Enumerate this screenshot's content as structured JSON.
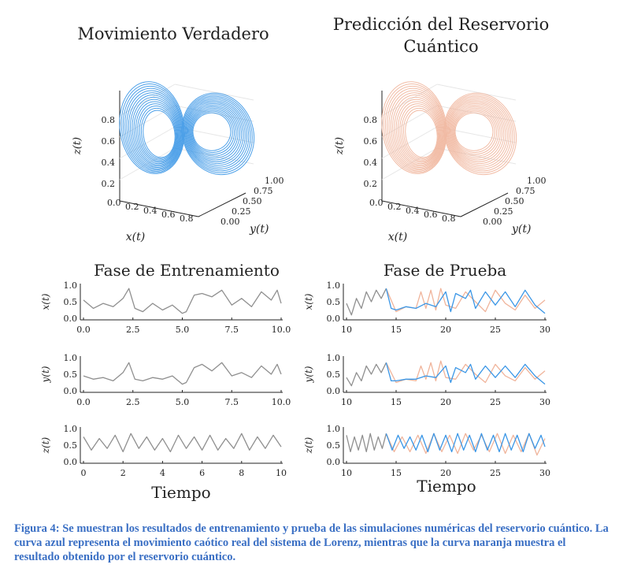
{
  "figure": {
    "colors": {
      "truth": "#3a96e6",
      "prediction": "#f0b49b",
      "training": "#8f8f8f",
      "axis": "#222222",
      "grid": "#e6e6e6"
    },
    "attractor_panels": [
      {
        "title_lines": [
          "Movimiento Verdadero"
        ],
        "color": "truth",
        "zlabel": "z(t)",
        "xlabel": "x(t)",
        "ylabel": "y(t)",
        "z_ticks": [
          "0.2",
          "0.4",
          "0.6",
          "0.8"
        ],
        "x_ticks": [
          "0.0",
          "0.2",
          "0.4",
          "0.6",
          "0.8"
        ],
        "y_ticks": [
          "0.00",
          "0.25",
          "0.50",
          "0.75",
          "1.00"
        ]
      },
      {
        "title_lines": [
          "Predicción del Reservorio",
          "Cuántico"
        ],
        "color": "prediction",
        "zlabel": "z(t)",
        "xlabel": "x(t)",
        "ylabel": "y(t)",
        "z_ticks": [
          "0.2",
          "0.4",
          "0.6",
          "0.8"
        ],
        "x_ticks": [
          "0.0",
          "0.2",
          "0.4",
          "0.6",
          "0.8"
        ],
        "y_ticks": [
          "0.00",
          "0.25",
          "0.50",
          "0.75",
          "1.00"
        ]
      }
    ],
    "phase_titles": [
      "Fase de Entrenamiento",
      "Fase de Prueba"
    ],
    "xlabel_bottom": [
      "Tiempo",
      "Tiempo"
    ],
    "row_labels": [
      "x(t)",
      "y(t)",
      "z(t)"
    ]
  },
  "chart_data": [
    {
      "type": "line",
      "panel": "training-x",
      "ylabel": "x(t)",
      "xlim": [
        0,
        10
      ],
      "ylim": [
        0,
        1
      ],
      "x_ticks": [
        "0.0",
        "2.5",
        "5.0",
        "7.5",
        "10.0"
      ],
      "y_ticks": [
        "0.0",
        "0.5",
        "1.0"
      ],
      "series": [
        {
          "color": "training",
          "x": [
            0,
            0.5,
            1,
            1.5,
            2,
            2.3,
            2.6,
            3,
            3.5,
            4,
            4.5,
            5,
            5.2,
            5.6,
            6,
            6.5,
            7,
            7.5,
            8,
            8.5,
            9,
            9.5,
            9.8,
            10
          ],
          "y": [
            0.55,
            0.3,
            0.45,
            0.35,
            0.6,
            0.9,
            0.3,
            0.2,
            0.45,
            0.25,
            0.4,
            0.15,
            0.2,
            0.7,
            0.75,
            0.65,
            0.85,
            0.4,
            0.6,
            0.35,
            0.8,
            0.55,
            0.85,
            0.45
          ]
        }
      ]
    },
    {
      "type": "line",
      "panel": "training-y",
      "ylabel": "y(t)",
      "xlim": [
        0,
        10
      ],
      "ylim": [
        0,
        1
      ],
      "x_ticks": [
        "0.0",
        "2.5",
        "5.0",
        "7.5",
        "10.0"
      ],
      "y_ticks": [
        "0.0",
        "0.5",
        "1.0"
      ],
      "series": [
        {
          "color": "training",
          "x": [
            0,
            0.5,
            1,
            1.5,
            2,
            2.3,
            2.6,
            3,
            3.5,
            4,
            4.5,
            5,
            5.2,
            5.6,
            6,
            6.5,
            7,
            7.5,
            8,
            8.5,
            9,
            9.5,
            9.8,
            10
          ],
          "y": [
            0.45,
            0.35,
            0.4,
            0.3,
            0.55,
            0.85,
            0.35,
            0.3,
            0.4,
            0.35,
            0.45,
            0.2,
            0.25,
            0.7,
            0.8,
            0.6,
            0.85,
            0.45,
            0.55,
            0.4,
            0.75,
            0.5,
            0.8,
            0.5
          ]
        }
      ]
    },
    {
      "type": "line",
      "panel": "training-z",
      "ylabel": "z(t)",
      "xlim": [
        0,
        10
      ],
      "ylim": [
        0,
        1
      ],
      "x_ticks": [
        "0",
        "2",
        "4",
        "6",
        "8",
        "10"
      ],
      "y_ticks": [
        "0.0",
        "0.5",
        "1.0"
      ],
      "series": [
        {
          "color": "training",
          "x": [
            0,
            0.4,
            0.8,
            1.2,
            1.6,
            2,
            2.4,
            2.8,
            3.2,
            3.6,
            4,
            4.4,
            4.8,
            5.2,
            5.6,
            6,
            6.4,
            6.8,
            7.2,
            7.6,
            8,
            8.4,
            8.8,
            9.2,
            9.6,
            10
          ],
          "y": [
            0.75,
            0.35,
            0.7,
            0.4,
            0.8,
            0.3,
            0.85,
            0.4,
            0.75,
            0.35,
            0.7,
            0.3,
            0.8,
            0.4,
            0.75,
            0.35,
            0.8,
            0.35,
            0.7,
            0.4,
            0.85,
            0.35,
            0.75,
            0.4,
            0.8,
            0.45
          ]
        }
      ]
    },
    {
      "type": "line",
      "panel": "test-x",
      "ylabel": "x(t)",
      "xlim": [
        10,
        30
      ],
      "ylim": [
        0,
        1
      ],
      "x_ticks": [
        "10",
        "15",
        "20",
        "25",
        "30"
      ],
      "y_ticks": [
        "0.0",
        "0.5",
        "1.0"
      ],
      "series": [
        {
          "color": "training",
          "x": [
            10,
            10.5,
            11,
            11.5,
            12,
            12.5,
            13,
            13.5,
            14
          ],
          "y": [
            0.45,
            0.1,
            0.6,
            0.3,
            0.8,
            0.5,
            0.85,
            0.6,
            0.9
          ]
        },
        {
          "color": "prediction",
          "x": [
            14,
            15,
            16,
            17,
            17.5,
            18,
            18.5,
            19,
            19.5,
            20,
            21,
            22,
            23,
            24,
            25,
            26,
            27,
            28,
            29,
            30
          ],
          "y": [
            0.9,
            0.2,
            0.35,
            0.3,
            0.8,
            0.3,
            0.85,
            0.25,
            0.9,
            0.4,
            0.3,
            0.8,
            0.5,
            0.2,
            0.85,
            0.45,
            0.25,
            0.7,
            0.3,
            0.55
          ]
        },
        {
          "color": "truth",
          "x": [
            14,
            14.5,
            15,
            16,
            17,
            18,
            19,
            20,
            20.5,
            21,
            22,
            22.5,
            23,
            24,
            25,
            26,
            27,
            28,
            29,
            30
          ],
          "y": [
            0.9,
            0.3,
            0.25,
            0.35,
            0.3,
            0.45,
            0.35,
            0.8,
            0.2,
            0.75,
            0.6,
            0.85,
            0.3,
            0.8,
            0.4,
            0.8,
            0.35,
            0.85,
            0.4,
            0.15
          ]
        }
      ]
    },
    {
      "type": "line",
      "panel": "test-y",
      "ylabel": "y(t)",
      "xlim": [
        10,
        30
      ],
      "ylim": [
        0,
        1
      ],
      "x_ticks": [
        "10",
        "15",
        "20",
        "25",
        "30"
      ],
      "y_ticks": [
        "0.0",
        "0.5",
        "1.0"
      ],
      "series": [
        {
          "color": "training",
          "x": [
            10,
            10.5,
            11,
            11.5,
            12,
            12.5,
            13,
            13.5,
            14
          ],
          "y": [
            0.4,
            0.15,
            0.55,
            0.3,
            0.75,
            0.5,
            0.8,
            0.55,
            0.85
          ]
        },
        {
          "color": "prediction",
          "x": [
            14,
            15,
            16,
            17,
            17.5,
            18,
            18.5,
            19,
            19.5,
            20,
            21,
            22,
            23,
            24,
            25,
            26,
            27,
            28,
            29,
            30
          ],
          "y": [
            0.85,
            0.25,
            0.35,
            0.3,
            0.75,
            0.35,
            0.85,
            0.3,
            0.9,
            0.4,
            0.35,
            0.8,
            0.5,
            0.25,
            0.8,
            0.45,
            0.3,
            0.7,
            0.35,
            0.6
          ]
        },
        {
          "color": "truth",
          "x": [
            14,
            14.5,
            15,
            16,
            17,
            18,
            19,
            20,
            20.5,
            21,
            22,
            22.5,
            23,
            24,
            25,
            26,
            27,
            28,
            29,
            30
          ],
          "y": [
            0.85,
            0.3,
            0.3,
            0.35,
            0.35,
            0.45,
            0.4,
            0.75,
            0.25,
            0.7,
            0.55,
            0.8,
            0.35,
            0.75,
            0.4,
            0.75,
            0.4,
            0.8,
            0.45,
            0.2
          ]
        }
      ]
    },
    {
      "type": "line",
      "panel": "test-z",
      "ylabel": "z(t)",
      "xlim": [
        10,
        30
      ],
      "ylim": [
        0,
        1
      ],
      "x_ticks": [
        "10",
        "15",
        "20",
        "25",
        "30"
      ],
      "y_ticks": [
        "0.0",
        "0.5",
        "1.0"
      ],
      "series": [
        {
          "color": "training",
          "x": [
            10,
            10.4,
            10.8,
            11.2,
            11.6,
            12,
            12.4,
            12.8,
            13.2,
            13.6,
            14
          ],
          "y": [
            0.8,
            0.3,
            0.75,
            0.35,
            0.8,
            0.3,
            0.85,
            0.35,
            0.75,
            0.4,
            0.85
          ]
        },
        {
          "color": "prediction",
          "x": [
            14,
            14.8,
            15.6,
            16.4,
            17.2,
            18,
            18.8,
            19.6,
            20.4,
            21.2,
            22,
            22.8,
            23.6,
            24.4,
            25.2,
            26,
            26.8,
            27.6,
            28.4,
            29.2,
            30
          ],
          "y": [
            0.85,
            0.3,
            0.75,
            0.3,
            0.8,
            0.25,
            0.85,
            0.3,
            0.8,
            0.25,
            0.85,
            0.35,
            0.8,
            0.3,
            0.85,
            0.25,
            0.8,
            0.3,
            0.85,
            0.2,
            0.7
          ]
        },
        {
          "color": "truth",
          "x": [
            14,
            14.6,
            15.2,
            15.8,
            16.4,
            17,
            17.6,
            18.2,
            18.8,
            19.4,
            20,
            20.6,
            21.2,
            21.8,
            22.4,
            23,
            23.6,
            24.2,
            24.8,
            25.4,
            26,
            26.6,
            27.2,
            27.8,
            28.4,
            29,
            29.6,
            30
          ],
          "y": [
            0.85,
            0.35,
            0.8,
            0.4,
            0.75,
            0.35,
            0.8,
            0.3,
            0.85,
            0.35,
            0.8,
            0.3,
            0.85,
            0.35,
            0.8,
            0.3,
            0.85,
            0.35,
            0.8,
            0.3,
            0.85,
            0.35,
            0.8,
            0.3,
            0.85,
            0.4,
            0.8,
            0.45
          ]
        }
      ]
    }
  ],
  "caption": "Figura 4: Se muestran los resultados de entrenamiento y prueba de las simulaciones numéricas del reservorio cuántico. La curva azul representa el movimiento caótico real del sistema de Lorenz, mientras que la curva naranja muestra el resultado obtenido por el reservorio cuántico."
}
